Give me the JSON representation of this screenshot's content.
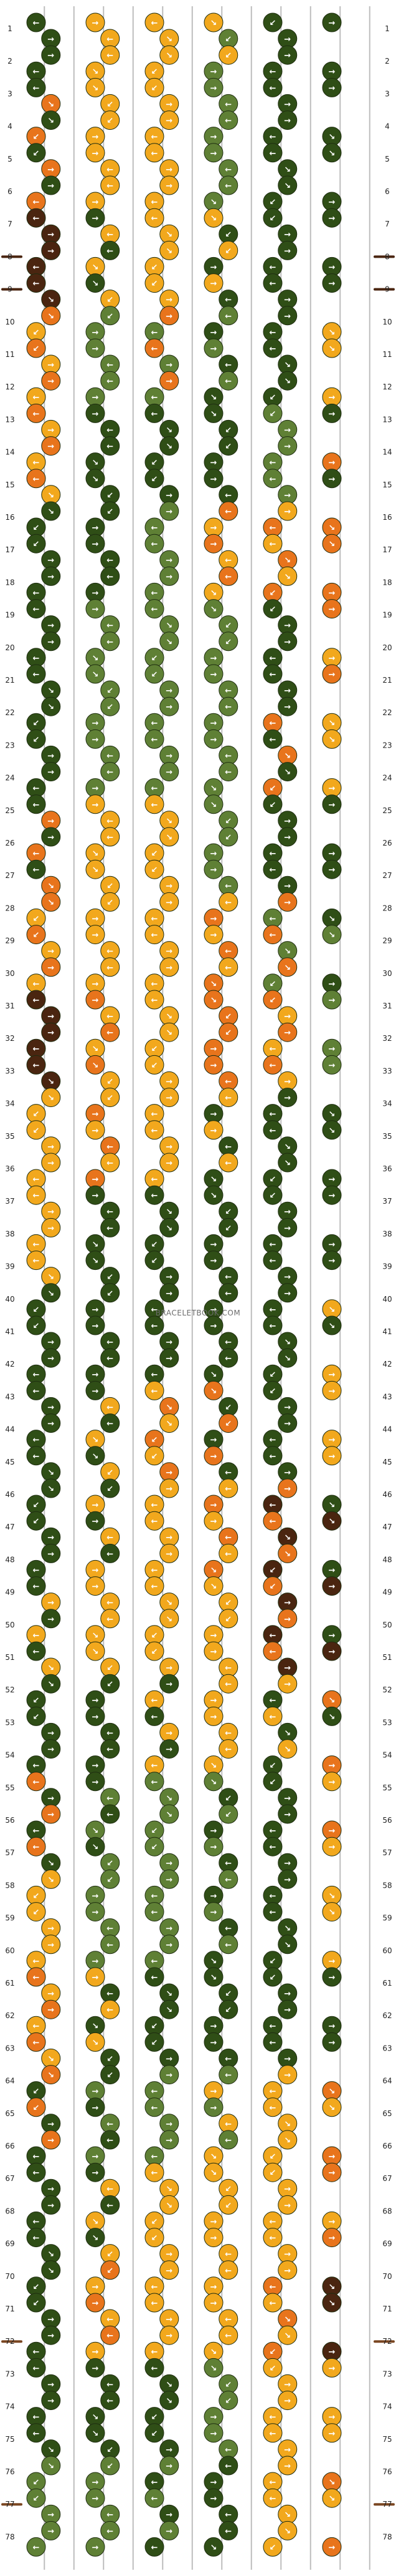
{
  "watermark": "BRACELETBOOK.COM",
  "palette": {
    "dark_green": "#2f4e16",
    "light_green": "#5f8035",
    "yellow": "#f2a81d",
    "orange": "#e8741c",
    "brown_dark": "#4a2510",
    "brown_mid": "#7a4722",
    "string_gray": "#bdbdbd"
  },
  "strings": {
    "count": 12,
    "top_colors": [
      "dark_green",
      "dark_green",
      "yellow",
      "yellow",
      "yellow",
      "yellow",
      "yellow",
      "light_green",
      "dark_green",
      "dark_green",
      "dark_green",
      "dark_green"
    ]
  },
  "rows": {
    "labels": [
      "1",
      "2",
      "3",
      "4",
      "5",
      "6",
      "7",
      "8",
      "9",
      "10",
      "11",
      "12",
      "13",
      "14",
      "15",
      "16",
      "17",
      "18",
      "19",
      "20",
      "21",
      "22",
      "23",
      "24",
      "25",
      "26",
      "27",
      "28",
      "29",
      "30",
      "31",
      "32",
      "33",
      "34",
      "35",
      "36",
      "37",
      "38",
      "39",
      "40",
      "41",
      "42",
      "43",
      "44",
      "45",
      "46",
      "47",
      "48",
      "49",
      "50",
      "51",
      "52",
      "53",
      "54",
      "55",
      "56",
      "57",
      "58",
      "59",
      "60",
      "61",
      "62",
      "63",
      "64",
      "65",
      "66",
      "67",
      "68",
      "69",
      "70",
      "71",
      "72",
      "73",
      "74",
      "75",
      "76",
      "77",
      "78"
    ],
    "bands": [
      {
        "from": 1,
        "to": 2,
        "knots": "DDYYYYYLDDDD"
      },
      {
        "from": 3,
        "to": 6,
        "knots": "DOYYYYLLDDDD"
      },
      {
        "from": 7,
        "to": 9,
        "knots": "BBDYYYYDDDDD"
      },
      {
        "from": 10,
        "to": 12,
        "knots": "OYLLOLLDDDYY"
      },
      {
        "from": 13,
        "to": 15,
        "knots": "OYDDDDDDLLDO"
      },
      {
        "from": 16,
        "to": 18,
        "knots": "DDDDLLOYYOOO"
      },
      {
        "from": 19,
        "to": 21,
        "knots": "DDLLLLLLDDOY"
      },
      {
        "from": 22,
        "to": 24,
        "knots": "DDLLLLLLDOYY"
      },
      {
        "from": 25,
        "to": 27,
        "knots": "DOYYYYLLDDDD"
      },
      {
        "from": 28,
        "to": 30,
        "knots": "OYYYYYYOOLLD"
      },
      {
        "from": 31,
        "to": 33,
        "knots": "BBOYYYOOOYLL"
      },
      {
        "from": 34,
        "to": 36,
        "knots": "YYYOYYYDDDDD"
      },
      {
        "from": 37,
        "to": 39,
        "knots": "YYDDDDDDDDDD"
      },
      {
        "from": 40,
        "to": 42,
        "knots": "DDDDDDDDDDDY"
      },
      {
        "from": 43,
        "to": 45,
        "knots": "DDDYYOODDDYY"
      },
      {
        "from": 46,
        "to": 48,
        "knots": "DDDYYYYOOBBD"
      },
      {
        "from": 49,
        "to": 51,
        "knots": "DYYYYYYYOBBD"
      },
      {
        "from": 52,
        "to": 54,
        "knots": "DDDDDYYYYDDO"
      },
      {
        "from": 55,
        "to": 57,
        "knots": "ODDLLLLDDDYO"
      },
      {
        "from": 58,
        "to": 60,
        "knots": "YYLLLLLDDDYY"
      },
      {
        "from": 61,
        "to": 63,
        "knots": "OYYDDDDDDDDD"
      },
      {
        "from": 64,
        "to": 66,
        "knots": "ODDLLLLYYYYO"
      },
      {
        "from": 67,
        "to": 69,
        "knots": "DDDYYYYYYYOY"
      },
      {
        "from": 70,
        "to": 72,
        "knots": "DDOYYYYYYOBB"
      },
      {
        "from": 73,
        "to": 75,
        "knots": "DDDDDDLLYYYY"
      },
      {
        "from": 76,
        "to": 78,
        "knots": "LLLLLDDDYYYO"
      }
    ],
    "direction_cycle": [
      "→",
      "←",
      "→",
      "←",
      "↘",
      "↙"
    ]
  }
}
